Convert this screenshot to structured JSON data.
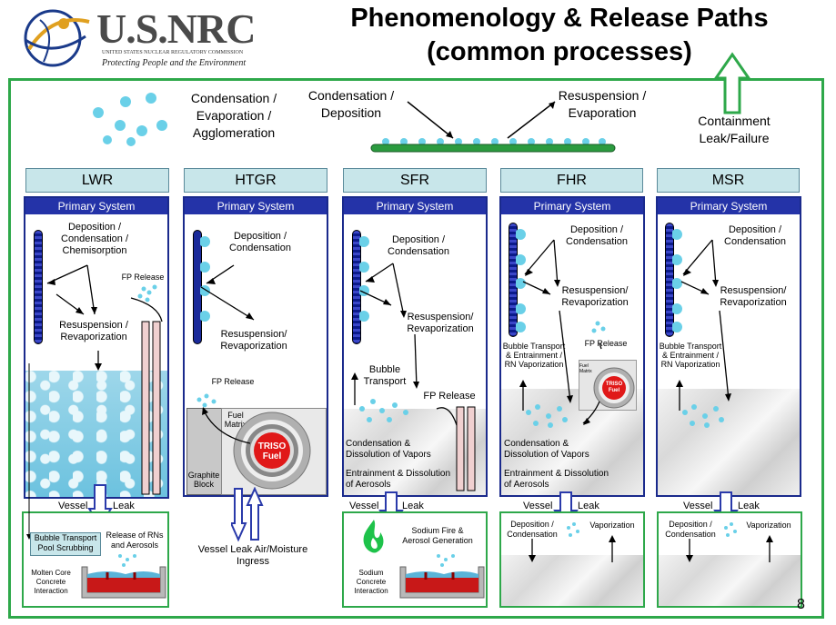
{
  "header": {
    "logo_text": "U.S.NRC",
    "logo_subtitle": "UNITED STATES NUCLEAR REGULATORY COMMISSION",
    "logo_tagline": "Protecting People and the Environment",
    "title_line1": "Phenomenology & Release Paths",
    "title_line2": "(common processes)"
  },
  "top_labels": {
    "cond_evap": "Condensation / Evaporation / Agglomeration",
    "cond_dep": "Condensation / Deposition",
    "resusp": "Resuspension / Evaporation",
    "containment": "Containment Leak/Failure"
  },
  "columns": [
    {
      "name": "LWR"
    },
    {
      "name": "HTGR"
    },
    {
      "name": "SFR"
    },
    {
      "name": "FHR"
    },
    {
      "name": "MSR"
    }
  ],
  "primary_system": "Primary System",
  "lwr": {
    "dep": "Deposition / Condensation / Chemisorption",
    "resusp": "Resuspension / Revaporization",
    "fp_release": "FP Release",
    "vessel": "Vessel",
    "leak": "Leak",
    "bubble": "Bubble Transport Pool Scrubbing",
    "release": "Release of RNs and Aerosols",
    "molten": "Molten Core Concrete Interaction"
  },
  "htgr": {
    "dep": "Deposition / Condensation",
    "resusp": "Resuspension/ Revaporization",
    "fp_release": "FP Release",
    "fuel_matrix": "Fuel Matrix",
    "triso": "TRISO Fuel",
    "graphite": "Graphite Block",
    "vessel_leak": "Vessel Leak Air/Moisture Ingress"
  },
  "sfr": {
    "dep": "Deposition / Condensation",
    "resusp": "Resuspension/ Revaporization",
    "bubble": "Bubble Transport",
    "fp_release": "FP Release",
    "cond_diss": "Condensation & Dissolution of Vapors",
    "entrain": "Entrainment & Dissolution of Aerosols",
    "vessel": "Vessel",
    "leak": "Leak",
    "sodium_fire": "Sodium Fire & Aerosol Generation",
    "sodium_concrete": "Sodium Concrete Interaction"
  },
  "fhr": {
    "dep": "Deposition / Condensation",
    "resusp": "Resuspension/ Revaporization",
    "bubble": "Bubble Transport & Entrainment / RN Vaporization",
    "fp_release": "FP Release",
    "fuel_matrix": "Fuel Matrix",
    "triso": "TRISO Fuel",
    "cond_diss": "Condensation & Dissolution of Vapors",
    "entrain": "Entrainment & Dissolution of Aerosols",
    "vessel": "Vessel",
    "leak": "Leak",
    "dep2": "Deposition / Condensation",
    "vapor": "Vaporization"
  },
  "msr": {
    "dep": "Deposition / Condensation",
    "resusp": "Resuspension/ Revaporization",
    "bubble": "Bubble Transport & Entrainment / RN Vaporization",
    "vessel": "Vessel",
    "leak": "Leak",
    "dep2": "Deposition / Condensation",
    "vapor": "Vaporization"
  },
  "page_number": "8"
}
